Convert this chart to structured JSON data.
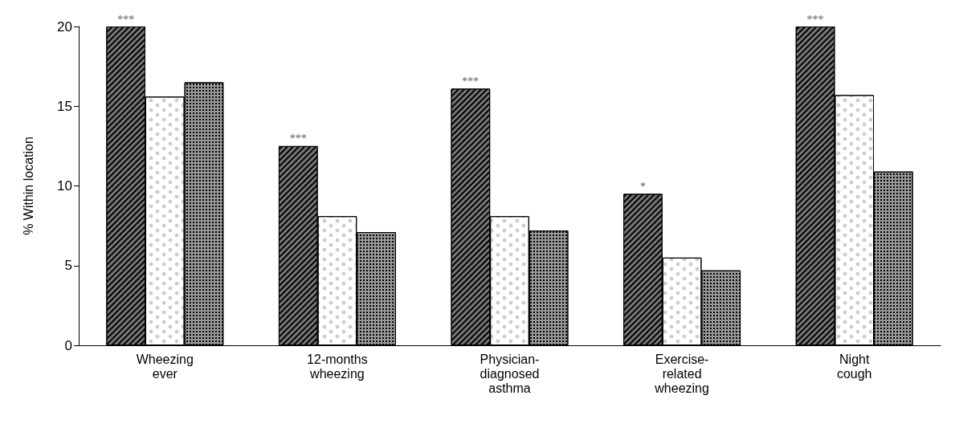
{
  "chart_data": {
    "type": "bar",
    "ylabel": "% Within location",
    "categories": [
      "Wheezing\never",
      "12-months\nwheezing",
      "Physician-\ndiagnosed\nasthma",
      "Exercise-\nrelated\nwheezing",
      "Night\ncough"
    ],
    "series": [
      {
        "color": "#777777",
        "values": [
          20.0,
          12.5,
          16.1,
          9.5,
          20.0
        ],
        "value_labels": [
          "***",
          "***",
          "***",
          "*",
          "***"
        ]
      },
      {
        "color": "#ffffff",
        "values": [
          15.6,
          8.1,
          8.1,
          5.5,
          15.7
        ]
      },
      {
        "color": "#999999",
        "values": [
          16.5,
          7.1,
          7.2,
          4.7,
          10.9
        ]
      }
    ],
    "ylim": [
      0,
      20
    ],
    "yticks": [
      0,
      5,
      10,
      15,
      20
    ],
    "grid": false
  }
}
